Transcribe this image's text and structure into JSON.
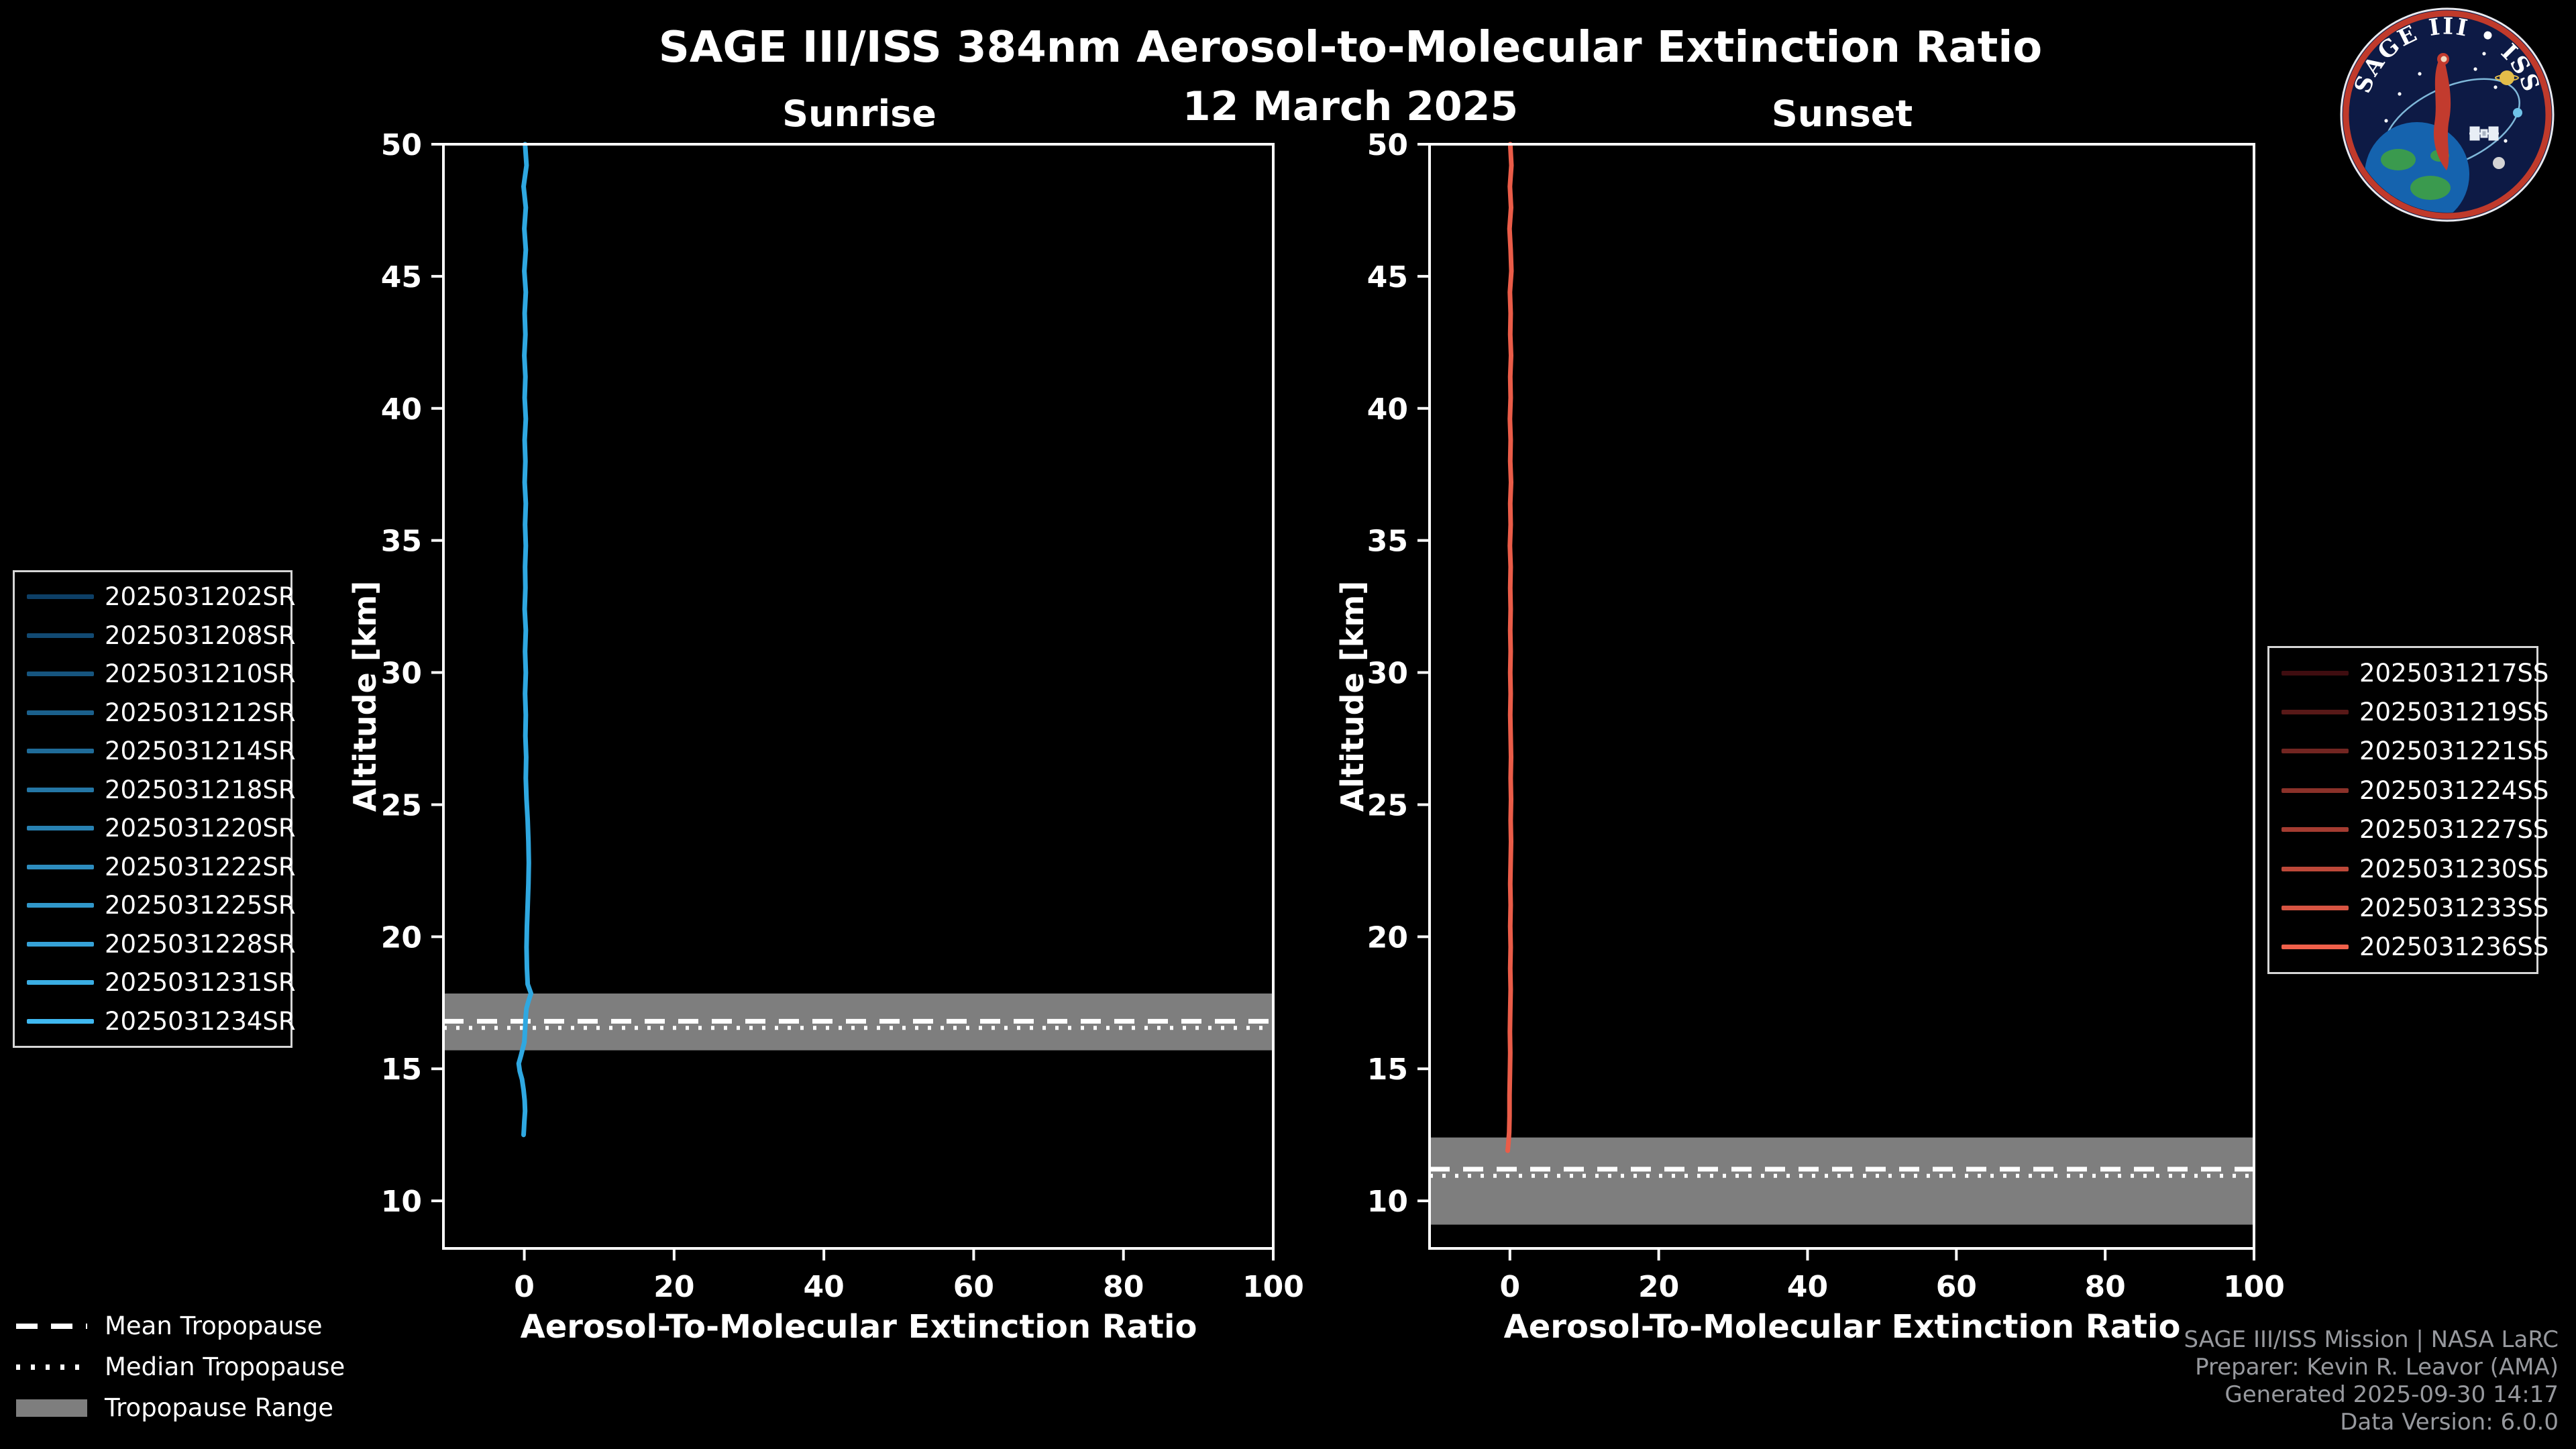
{
  "title": "SAGE III/ISS 384nm Aerosol-to-Molecular Extinction Ratio",
  "date": "12 March 2025",
  "logo": {
    "title": "SAGE III • ISS"
  },
  "trop_legend": {
    "mean": "Mean Tropopause",
    "median": "Median Tropopause",
    "range": "Tropopause Range"
  },
  "credits": {
    "line1": "SAGE III/ISS Mission | NASA LaRC",
    "line2": "Preparer: Kevin R. Leavor (AMA)",
    "line3": "Generated 2025-09-30 14:17",
    "line4": "Data Version: 6.0.0"
  },
  "colors": {
    "background": "#000000",
    "sunrise_line": "#2fa8e1",
    "sunset_line": "#ea5c48",
    "tropopause_band": "#7e7e7e",
    "axis": "#ffffff",
    "credits_text": "#97999e"
  },
  "chart_data": [
    {
      "type": "line",
      "title": "Sunrise",
      "xlabel": "Aerosol-To-Molecular Extinction Ratio",
      "ylabel": "Altitude [km]",
      "xlim": [
        -10.8,
        100
      ],
      "ylim": [
        8.2,
        50
      ],
      "xticks": [
        0,
        20,
        40,
        60,
        80,
        100
      ],
      "yticks": [
        10,
        15,
        20,
        25,
        30,
        35,
        40,
        45,
        50
      ],
      "grid": false,
      "band_color": "#7e7e7e",
      "tropopause": {
        "mean": 16.8,
        "median": 16.55,
        "range": [
          15.7,
          17.85
        ]
      },
      "series": [
        {
          "name": "sunrise-composite-profile",
          "color": "#2fa8e1",
          "points": [
            [
              0.1,
              50
            ],
            [
              0.3,
              49.2
            ],
            [
              -0.1,
              48.4
            ],
            [
              0.2,
              47.6
            ],
            [
              0,
              46.8
            ],
            [
              0.2,
              46
            ],
            [
              0,
              45.2
            ],
            [
              0.2,
              44.4
            ],
            [
              0.05,
              43.6
            ],
            [
              0.15,
              42.8
            ],
            [
              0,
              42
            ],
            [
              0.15,
              41.2
            ],
            [
              0.05,
              40.4
            ],
            [
              0.2,
              39.6
            ],
            [
              0.05,
              38.8
            ],
            [
              0.15,
              38
            ],
            [
              0.05,
              37.2
            ],
            [
              0.2,
              36.4
            ],
            [
              0.1,
              35.6
            ],
            [
              0.2,
              34.8
            ],
            [
              0.1,
              34
            ],
            [
              0.15,
              33.2
            ],
            [
              0.05,
              32.4
            ],
            [
              0.2,
              31.6
            ],
            [
              0.1,
              30.8
            ],
            [
              0.2,
              30
            ],
            [
              0.1,
              29.2
            ],
            [
              0.2,
              28.4
            ],
            [
              0.15,
              27.6
            ],
            [
              0.25,
              26.8
            ],
            [
              0.2,
              26
            ],
            [
              0.3,
              25.2
            ],
            [
              0.45,
              24.4
            ],
            [
              0.55,
              23.6
            ],
            [
              0.6,
              22.8
            ],
            [
              0.55,
              22
            ],
            [
              0.45,
              21.2
            ],
            [
              0.35,
              20.4
            ],
            [
              0.3,
              19.6
            ],
            [
              0.35,
              18.8
            ],
            [
              0.45,
              18.2
            ],
            [
              0.9,
              17.85
            ],
            [
              0.6,
              17.6
            ],
            [
              0.3,
              17.3
            ],
            [
              0.2,
              17
            ],
            [
              0.1,
              16.5
            ],
            [
              0,
              16
            ],
            [
              -0.45,
              15.5
            ],
            [
              -0.75,
              15.2
            ],
            [
              -0.6,
              14.9
            ],
            [
              -0.3,
              14.6
            ],
            [
              -0.1,
              14.2
            ],
            [
              0.05,
              13.8
            ],
            [
              0.1,
              13.4
            ],
            [
              0,
              13
            ],
            [
              -0.05,
              12.7
            ],
            [
              -0.1,
              12.5
            ]
          ]
        }
      ],
      "legend": [
        {
          "label": "2025031202SR",
          "color": "#0d3f66"
        },
        {
          "label": "2025031208SR",
          "color": "#124a73"
        },
        {
          "label": "2025031210SR",
          "color": "#16557f"
        },
        {
          "label": "2025031212SR",
          "color": "#1b608c"
        },
        {
          "label": "2025031214SR",
          "color": "#1f6b98"
        },
        {
          "label": "2025031218SR",
          "color": "#2476a5"
        },
        {
          "label": "2025031220SR",
          "color": "#2881b1"
        },
        {
          "label": "2025031222SR",
          "color": "#2d8cbe"
        },
        {
          "label": "2025031225SR",
          "color": "#3197ca"
        },
        {
          "label": "2025031228SR",
          "color": "#36a2d7"
        },
        {
          "label": "2025031231SR",
          "color": "#3aade3"
        },
        {
          "label": "2025031234SR",
          "color": "#3fb8f0"
        }
      ]
    },
    {
      "type": "line",
      "title": "Sunset",
      "xlabel": "Aerosol-To-Molecular Extinction Ratio",
      "ylabel": "Altitude [km]",
      "xlim": [
        -10.8,
        100
      ],
      "ylim": [
        8.2,
        50
      ],
      "xticks": [
        0,
        20,
        40,
        60,
        80,
        100
      ],
      "yticks": [
        10,
        15,
        20,
        25,
        30,
        35,
        40,
        45,
        50
      ],
      "grid": false,
      "band_color": "#7e7e7e",
      "tropopause": {
        "mean": 11.2,
        "median": 10.95,
        "range": [
          9.1,
          12.4
        ]
      },
      "series": [
        {
          "name": "sunset-composite-profile",
          "color": "#ea5c48",
          "points": [
            [
              0.05,
              50
            ],
            [
              0.2,
              49.2
            ],
            [
              0,
              48.4
            ],
            [
              0.15,
              47.6
            ],
            [
              -0.05,
              46.8
            ],
            [
              0.1,
              46
            ],
            [
              0.2,
              45.2
            ],
            [
              0,
              44.4
            ],
            [
              0.1,
              43.6
            ],
            [
              0.05,
              42.8
            ],
            [
              0.15,
              42
            ],
            [
              0.05,
              41.2
            ],
            [
              0.1,
              40.4
            ],
            [
              0,
              39.6
            ],
            [
              0.1,
              38.8
            ],
            [
              0.05,
              38
            ],
            [
              0.15,
              37.2
            ],
            [
              0.05,
              36.4
            ],
            [
              0.1,
              35.6
            ],
            [
              0,
              34.8
            ],
            [
              0.1,
              34
            ],
            [
              0.05,
              33.2
            ],
            [
              0.1,
              32.4
            ],
            [
              0.05,
              31.6
            ],
            [
              0.1,
              30.8
            ],
            [
              0.05,
              30
            ],
            [
              0.1,
              29.2
            ],
            [
              0.05,
              28.4
            ],
            [
              0.1,
              27.6
            ],
            [
              0.15,
              26.8
            ],
            [
              0.1,
              26
            ],
            [
              0.15,
              25.2
            ],
            [
              0.1,
              24.4
            ],
            [
              0.15,
              23.6
            ],
            [
              0.1,
              22.8
            ],
            [
              0.05,
              22
            ],
            [
              0.1,
              21.2
            ],
            [
              0.05,
              20.4
            ],
            [
              0.1,
              19.6
            ],
            [
              0.05,
              18.8
            ],
            [
              0.1,
              18
            ],
            [
              0.05,
              17.2
            ],
            [
              0,
              16.4
            ],
            [
              0.05,
              15.6
            ],
            [
              0,
              14.8
            ],
            [
              -0.05,
              14
            ],
            [
              -0.05,
              13.2
            ],
            [
              -0.1,
              12.6
            ],
            [
              -0.2,
              12.2
            ],
            [
              -0.3,
              11.9
            ]
          ]
        }
      ],
      "legend": [
        {
          "label": "2025031217SS",
          "color": "#3f0d10"
        },
        {
          "label": "2025031219SS",
          "color": "#581918"
        },
        {
          "label": "2025031221SS",
          "color": "#722521"
        },
        {
          "label": "2025031224SS",
          "color": "#8b3129"
        },
        {
          "label": "2025031227SS",
          "color": "#a43c31"
        },
        {
          "label": "2025031230SS",
          "color": "#bd4839"
        },
        {
          "label": "2025031233SS",
          "color": "#d75442"
        },
        {
          "label": "2025031236SS",
          "color": "#f0604a"
        }
      ]
    }
  ]
}
